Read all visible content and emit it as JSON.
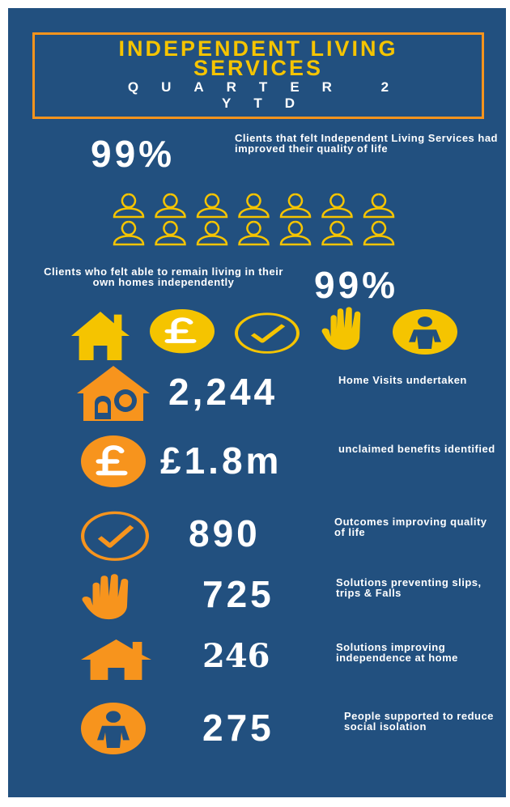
{
  "header": {
    "title": "INDEPENDENT LIVING SERVICES",
    "subtitle": "QUARTER 2 YTD"
  },
  "quality_of_life": {
    "value": "99%",
    "label": "Clients that felt Independent Living Services had improved their quality of life"
  },
  "remain_home": {
    "label": "Clients who felt able to remain living in their own homes independently",
    "value": "99%"
  },
  "stats": [
    {
      "value": "2,244",
      "label": "Home Visits undertaken"
    },
    {
      "value": "£1.8m",
      "label": "unclaimed benefits identified"
    },
    {
      "value": "890",
      "label": "Outcomes improving quality of life"
    },
    {
      "value": "725",
      "label": "Solutions preventing slips, trips & Falls"
    },
    {
      "value": "246",
      "label": "Solutions improving independence at home"
    },
    {
      "value": "275",
      "label": "People supported to reduce social isolation"
    }
  ]
}
